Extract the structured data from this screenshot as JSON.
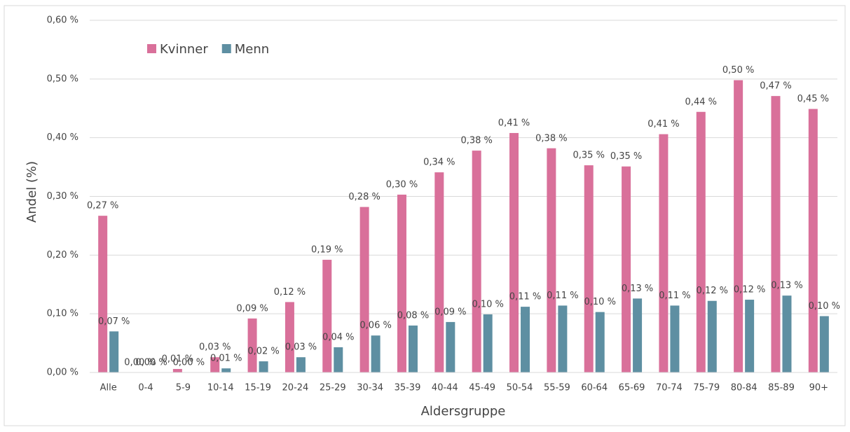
{
  "chart_data": {
    "type": "bar",
    "y_label": "Andel (%)",
    "x_label": "Aldersgruppe",
    "categories": [
      "Alle",
      "0-4",
      "5-9",
      "10-14",
      "15-19",
      "20-24",
      "25-29",
      "30-34",
      "35-39",
      "40-44",
      "45-49",
      "50-54",
      "55-59",
      "60-64",
      "65-69",
      "70-74",
      "75-79",
      "80-84",
      "85-89",
      "90+"
    ],
    "series": [
      {
        "name": "Kvinner",
        "color": "#d9709a",
        "values": [
          0.267,
          0,
          0.006,
          0.026,
          0.092,
          0.12,
          0.192,
          0.282,
          0.303,
          0.341,
          0.378,
          0.408,
          0.382,
          0.353,
          0.351,
          0.406,
          0.444,
          0.498,
          0.471,
          0.449
        ],
        "value_labels": [
          "0,27 %",
          "0,00 %",
          "0,01 %",
          "0,03 %",
          "0,09 %",
          "0,12 %",
          "0,19 %",
          "0,28 %",
          "0,30 %",
          "0,34 %",
          "0,38 %",
          "0,41 %",
          "0,38 %",
          "0,35 %",
          "0,35 %",
          "0,41 %",
          "0,44 %",
          "0,50 %",
          "0,47 %",
          "0,45 %"
        ]
      },
      {
        "name": "Menn",
        "color": "#5e8fa2",
        "values": [
          0.07,
          0,
          0,
          0.007,
          0.019,
          0.026,
          0.043,
          0.063,
          0.08,
          0.086,
          0.099,
          0.112,
          0.114,
          0.103,
          0.126,
          0.114,
          0.122,
          0.124,
          0.131,
          0.096
        ],
        "value_labels": [
          "0,07 %",
          "0,00 %",
          "0,00 %",
          "0,01 %",
          "0,02 %",
          "0,03 %",
          "0,04 %",
          "0,06 %",
          "0,08 %",
          "0,09 %",
          "0,10 %",
          "0,11 %",
          "0,11 %",
          "0,10 %",
          "0,13 %",
          "0,11 %",
          "0,12 %",
          "0,12 %",
          "0,13 %",
          "0,10 %"
        ]
      }
    ],
    "ylim": [
      0,
      0.6
    ],
    "yticks": [
      {
        "value": 0,
        "label": "0,00 %"
      },
      {
        "value": 0.1,
        "label": "0,10 %"
      },
      {
        "value": 0.2,
        "label": "0,20 %"
      },
      {
        "value": 0.3,
        "label": "0,30 %"
      },
      {
        "value": 0.4,
        "label": "0,40 %"
      },
      {
        "value": 0.5,
        "label": "0,50 %"
      },
      {
        "value": 0.6,
        "label": "0,60 %"
      }
    ],
    "grid": true,
    "legend": "top-left"
  }
}
